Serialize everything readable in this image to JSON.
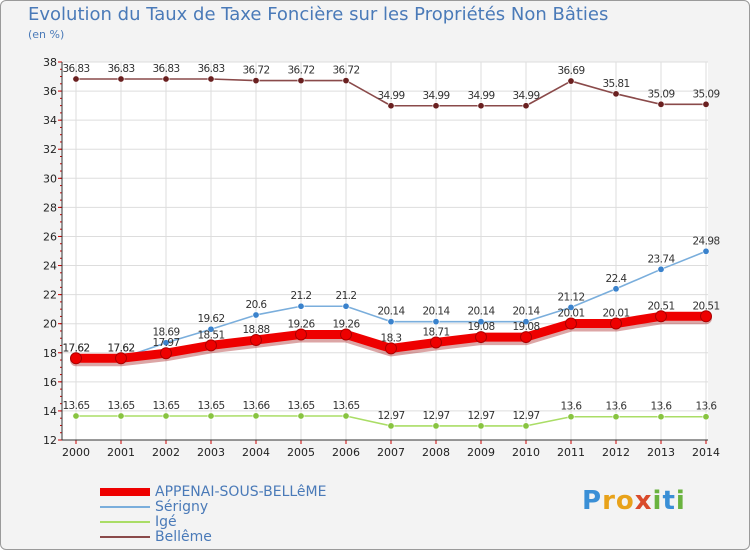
{
  "header": {
    "title": "Evolution du Taux de Taxe Foncière sur les Propriétés Non Bâties",
    "subtitle": "(en %)"
  },
  "logo": {
    "letters": [
      "P",
      "r",
      "o",
      "x",
      "i",
      "t",
      "i"
    ],
    "colors": [
      "#3a8fd6",
      "#e8a21a",
      "#e8a21a",
      "#d94a2b",
      "#6ab33f",
      "#3a8fd6",
      "#6ab33f"
    ]
  },
  "chart_data": {
    "type": "line",
    "title": "Evolution du Taux de Taxe Foncière sur les Propriétés Non Bâties",
    "ylabel": "(en %)",
    "xlabel": "",
    "ylim": [
      12,
      38
    ],
    "yticks": [
      "12",
      "14",
      "16",
      "18",
      "20",
      "22",
      "24",
      "26",
      "28",
      "30",
      "32",
      "34",
      "36",
      "38"
    ],
    "categories": [
      "2000",
      "2001",
      "2002",
      "2003",
      "2004",
      "2005",
      "2006",
      "2007",
      "2008",
      "2009",
      "2010",
      "2011",
      "2012",
      "2013",
      "2014"
    ],
    "grid": true,
    "legend_position": "bottom-left",
    "series": [
      {
        "name": "APPENAI-SOUS-BELLêME",
        "color": "#ee0000",
        "marker": "#ee0000",
        "values": [
          17.62,
          17.62,
          17.97,
          18.51,
          18.88,
          19.26,
          19.26,
          18.3,
          18.71,
          19.08,
          19.08,
          20.01,
          20.01,
          20.51,
          20.51
        ],
        "labels": [
          "17.62",
          "17.62",
          "17.97",
          "18.51",
          "18.88",
          "19.26",
          "19.26",
          "18.3",
          "18.71",
          "19.08",
          "19.08",
          "20.01",
          "20.01",
          "20.51",
          "20.51"
        ]
      },
      {
        "name": "Sérigny",
        "color": "#7aaedc",
        "marker": "#3a82cc",
        "values": [
          17.62,
          17.62,
          18.69,
          19.62,
          20.6,
          21.2,
          21.2,
          20.14,
          20.14,
          20.14,
          20.14,
          21.12,
          22.4,
          23.74,
          24.98
        ],
        "labels": [
          "17.62",
          "17.62",
          "18.69",
          "19.62",
          "20.6",
          "21.2",
          "21.2",
          "20.14",
          "20.14",
          "20.14",
          "20.14",
          "21.12",
          "22.4",
          "23.74",
          "24.98"
        ]
      },
      {
        "name": "Igé",
        "color": "#aadd66",
        "marker": "#88c440",
        "values": [
          13.65,
          13.65,
          13.65,
          13.65,
          13.66,
          13.65,
          13.65,
          12.97,
          12.97,
          12.97,
          12.97,
          13.6,
          13.6,
          13.6,
          13.6
        ],
        "labels": [
          "13.65",
          "13.65",
          "13.65",
          "13.65",
          "13.66",
          "13.65",
          "13.65",
          "12.97",
          "12.97",
          "12.97",
          "12.97",
          "13.6",
          "13.6",
          "13.6",
          "13.6"
        ]
      },
      {
        "name": "Bellême",
        "color": "#8a4a4a",
        "marker": "#6a2020",
        "values": [
          36.83,
          36.83,
          36.83,
          36.83,
          36.72,
          36.72,
          36.72,
          34.99,
          34.99,
          34.99,
          34.99,
          36.69,
          35.81,
          35.09,
          35.09
        ],
        "labels": [
          "36.83",
          "36.83",
          "36.83",
          "36.83",
          "36.72",
          "36.72",
          "36.72",
          "34.99",
          "34.99",
          "34.99",
          "34.99",
          "36.69",
          "35.81",
          "35.09",
          "35.09"
        ]
      }
    ]
  }
}
